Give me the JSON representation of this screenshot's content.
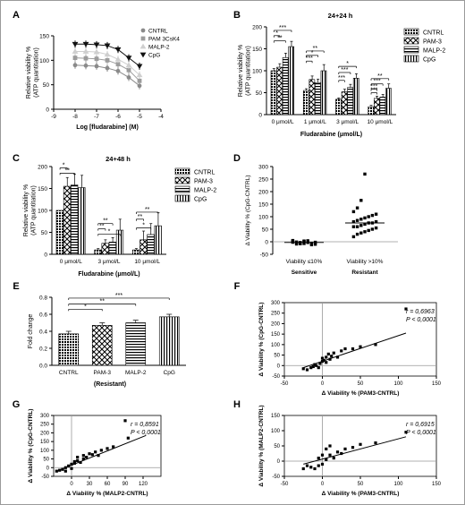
{
  "figure_border_color": "#9a9a9a",
  "chart_data": [
    {
      "id": "A",
      "panel_letter": "A",
      "type": "line",
      "title": "",
      "xlabel": "Log [fludarabine] (M)",
      "ylabel": [
        "Relative viability %",
        "(ATP quantitation)"
      ],
      "xlim": [
        -9,
        -4
      ],
      "ylim": [
        0,
        150
      ],
      "xticks": [
        -9,
        -8,
        -7,
        -6,
        -5,
        -4
      ],
      "yticks": [
        0,
        50,
        100,
        150
      ],
      "legend_position": "top-right",
      "x": [
        -8,
        -7.5,
        -7,
        -6.5,
        -6,
        -5.5,
        -5
      ],
      "series": [
        {
          "name": "CNTRL",
          "marker": "circle",
          "color": "#8a8a8a",
          "values": [
            90,
            89,
            88,
            84,
            78,
            65,
            48
          ]
        },
        {
          "name": "PAM 3CsK4",
          "marker": "square",
          "color": "#9c9c9c",
          "values": [
            105,
            104,
            103,
            100,
            92,
            80,
            58
          ]
        },
        {
          "name": "MALP-2",
          "marker": "triangle-up",
          "color": "#cfcfcf",
          "values": [
            118,
            118,
            117,
            112,
            102,
            90,
            70
          ]
        },
        {
          "name": "CpG",
          "marker": "triangle-down",
          "color": "#111111",
          "values": [
            133,
            133,
            132,
            130,
            122,
            105,
            88
          ]
        }
      ]
    },
    {
      "id": "B",
      "panel_letter": "B",
      "type": "bar",
      "title": "24+24 h",
      "xlabel": "Fludarabine (μmol/L)",
      "ylabel": [
        "Relative viability %",
        "(ATP quantitation)"
      ],
      "ylim": [
        0,
        200
      ],
      "yticks": [
        0,
        50,
        100,
        150,
        200
      ],
      "categories": [
        "0 μmol/L",
        "1 μmol/L",
        "3 μmol/L",
        "10 μmol/L"
      ],
      "legend_position": "right",
      "series": [
        {
          "name": "CNTRL",
          "pattern": "dense",
          "values": [
            100,
            55,
            35,
            18
          ]
        },
        {
          "name": "PAM-3",
          "pattern": "check",
          "values": [
            108,
            80,
            52,
            37
          ]
        },
        {
          "name": "MALP-2",
          "pattern": "hlines",
          "values": [
            130,
            73,
            62,
            40
          ]
        },
        {
          "name": "CpG",
          "pattern": "vlines",
          "values": [
            155,
            100,
            83,
            60
          ]
        }
      ],
      "errors": [
        [
          5,
          4,
          3,
          3
        ],
        [
          8,
          8,
          6,
          5
        ],
        [
          10,
          8,
          7,
          6
        ],
        [
          12,
          14,
          10,
          10
        ]
      ],
      "significance": [
        "*",
        "**",
        "***",
        "***",
        "*",
        "**",
        "***",
        "***",
        "*",
        "***",
        "***",
        "**",
        "***"
      ]
    },
    {
      "id": "C",
      "panel_letter": "C",
      "type": "bar",
      "title": "24+48 h",
      "xlabel": "Fludarabine (μmol/L)",
      "ylabel": [
        "Relative viability %",
        "(ATP quantitation)"
      ],
      "ylim": [
        0,
        200
      ],
      "yticks": [
        0,
        50,
        100,
        150,
        200
      ],
      "categories": [
        "0 μmol/L",
        "3 μmol/L",
        "10 μmol/L"
      ],
      "legend_position": "right",
      "series": [
        {
          "name": "CNTRL",
          "pattern": "dense",
          "values": [
            100,
            10,
            10
          ]
        },
        {
          "name": "PAM-3",
          "pattern": "check",
          "values": [
            155,
            25,
            33
          ]
        },
        {
          "name": "MALP-2",
          "pattern": "hlines",
          "values": [
            158,
            28,
            45
          ]
        },
        {
          "name": "CpG",
          "pattern": "vlines",
          "values": [
            152,
            55,
            65
          ]
        }
      ],
      "errors": [
        [
          0,
          3,
          3
        ],
        [
          20,
          8,
          20
        ],
        [
          25,
          10,
          25
        ],
        [
          28,
          25,
          30
        ]
      ],
      "significance": [
        "*",
        "**",
        "**",
        "**",
        "*",
        "**",
        "*",
        "**"
      ]
    },
    {
      "id": "D",
      "panel_letter": "D",
      "type": "scatter",
      "title": "",
      "xlabel": "",
      "ylabel": "Δ Viability % (CpG-CNTRL)",
      "ylim": [
        -50,
        300
      ],
      "yticks": [
        -50,
        0,
        50,
        100,
        150,
        200,
        250,
        300
      ],
      "categories": [
        "Viability ≤10%",
        "Viability >10%"
      ],
      "group_names": [
        "Sensitive",
        "Resistant"
      ],
      "groups": [
        {
          "name": "Sensitive",
          "values": [
            -2,
            -5,
            -8,
            3,
            -3,
            -6,
            -10,
            2,
            -1,
            -4,
            -7,
            4,
            -12,
            -2,
            5,
            -9,
            -3,
            1
          ]
        },
        {
          "name": "Resistant",
          "values": [
            20,
            30,
            35,
            40,
            45,
            50,
            55,
            60,
            60,
            65,
            70,
            75,
            75,
            80,
            80,
            85,
            90,
            95,
            100,
            105,
            110,
            120,
            135,
            165,
            270
          ]
        }
      ]
    },
    {
      "id": "E",
      "panel_letter": "E",
      "type": "bar",
      "title": "",
      "xlabel": "(Resistant)",
      "ylabel": "Fold change",
      "ylim": [
        0,
        0.8
      ],
      "yticks": [
        0.0,
        0.2,
        0.4,
        0.6,
        0.8
      ],
      "categories": [
        "CNTRL",
        "PAM-3",
        "MALP-2",
        "CpG"
      ],
      "patterns": [
        "dense",
        "check",
        "hlines",
        "vlines"
      ],
      "values": [
        0.37,
        0.47,
        0.5,
        0.57
      ],
      "errors": [
        0.03,
        0.03,
        0.03,
        0.03
      ],
      "significance": [
        "*",
        "**",
        "***"
      ]
    },
    {
      "id": "F",
      "panel_letter": "F",
      "type": "scatter",
      "title": "",
      "xlabel": "Δ Viability % (PAM3-CNTRL)",
      "ylabel": "Δ Viability % (CpG-CNTRL)",
      "xlim": [
        -50,
        150
      ],
      "ylim": [
        -50,
        300
      ],
      "xticks": [
        -50,
        0,
        50,
        100,
        150
      ],
      "yticks": [
        -50,
        0,
        50,
        100,
        150,
        200,
        250,
        300
      ],
      "annotation_r": "r = 0,6963",
      "annotation_p": "P < 0,0001",
      "fit": [
        [
          -25,
          -10
        ],
        [
          110,
          155
        ]
      ],
      "x": [
        -25,
        -20,
        -15,
        -12,
        -10,
        -8,
        -5,
        -3,
        0,
        0,
        2,
        5,
        5,
        8,
        10,
        12,
        15,
        20,
        25,
        30,
        40,
        50,
        70,
        110
      ],
      "y": [
        -15,
        -20,
        -10,
        -5,
        5,
        0,
        -10,
        10,
        20,
        35,
        25,
        15,
        40,
        55,
        30,
        45,
        60,
        40,
        70,
        80,
        80,
        90,
        100,
        270
      ]
    },
    {
      "id": "G",
      "panel_letter": "G",
      "type": "scatter",
      "title": "",
      "xlabel": "Δ Viability % (MALP2-CNTRL)",
      "ylabel": "Δ Viability % (CpG-CNTRL)",
      "xlim": [
        -30,
        150
      ],
      "ylim": [
        -50,
        300
      ],
      "xticks": [
        0,
        30,
        60,
        90,
        120
      ],
      "yticks": [
        -50,
        0,
        50,
        100,
        150,
        200,
        250,
        300
      ],
      "annotation_r": "r = 0,8591",
      "annotation_p": "P < 0,0001",
      "fit": [
        [
          -25,
          -20
        ],
        [
          125,
          185
        ]
      ],
      "x": [
        -25,
        -20,
        -15,
        -10,
        -10,
        -5,
        0,
        0,
        5,
        5,
        10,
        10,
        15,
        20,
        20,
        25,
        30,
        35,
        40,
        45,
        50,
        60,
        70,
        90,
        95
      ],
      "y": [
        -20,
        -15,
        -10,
        -20,
        0,
        10,
        -5,
        20,
        25,
        35,
        40,
        60,
        30,
        50,
        70,
        60,
        80,
        75,
        90,
        70,
        100,
        110,
        120,
        270,
        170
      ]
    },
    {
      "id": "H",
      "panel_letter": "H",
      "type": "scatter",
      "title": "",
      "xlabel": "Δ Viability % (PAM3-CNTRL)",
      "ylabel": "Δ Viability % (MALP2-CNTRL)",
      "xlim": [
        -50,
        150
      ],
      "ylim": [
        -50,
        150
      ],
      "xticks": [
        -50,
        0,
        50,
        100,
        150
      ],
      "yticks": [
        -50,
        0,
        50,
        100,
        150
      ],
      "annotation_r": "r = 0,6915",
      "annotation_p": "P < 0,0001",
      "fit": [
        [
          -25,
          -10
        ],
        [
          110,
          80
        ]
      ],
      "x": [
        -25,
        -20,
        -15,
        -10,
        -5,
        -5,
        0,
        0,
        5,
        5,
        10,
        10,
        15,
        20,
        25,
        30,
        40,
        50,
        70,
        110
      ],
      "y": [
        -25,
        -15,
        -20,
        -25,
        10,
        -15,
        20,
        -10,
        40,
        5,
        50,
        20,
        10,
        30,
        25,
        40,
        45,
        55,
        60,
        95
      ]
    }
  ]
}
